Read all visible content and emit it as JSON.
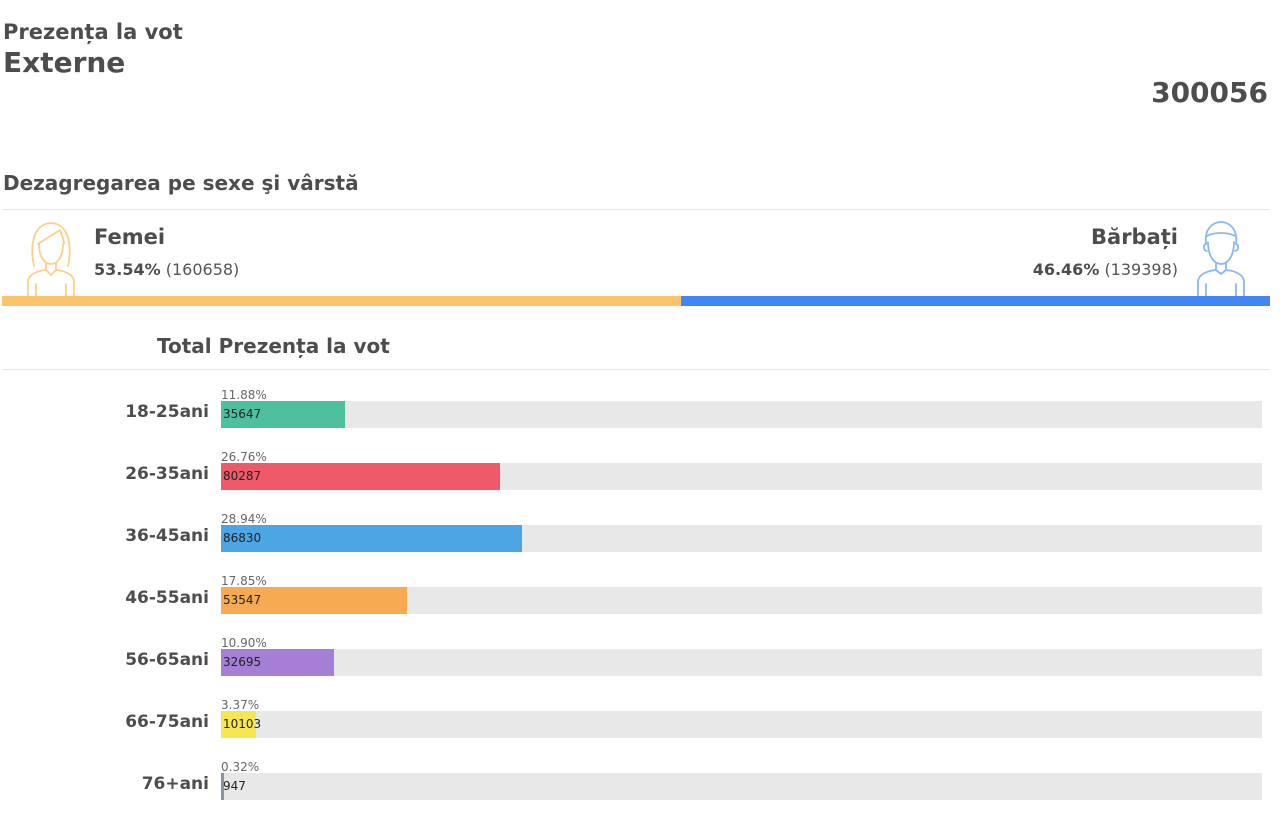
{
  "header": {
    "subtitle": "Prezența la vot",
    "title": "Externe",
    "total": "300056"
  },
  "breakdown": {
    "title": "Dezagregarea pe sexe şi vârstă",
    "female": {
      "label": "Femei",
      "percent": "53.54%",
      "count": "(160658)",
      "share": 53.54,
      "color": "#fbc36c",
      "icon": "female-user-icon"
    },
    "male": {
      "label": "Bărbați",
      "percent": "46.46%",
      "count": "(139398)",
      "share": 46.46,
      "color": "#4285f4",
      "icon": "male-user-icon"
    }
  },
  "age": {
    "title": "Total Prezența la vot",
    "groups": [
      {
        "label": "18-25ani",
        "percent": "11.88%",
        "count": "35647",
        "share": 11.88,
        "color": "#4ec0a0"
      },
      {
        "label": "26-35ani",
        "percent": "26.76%",
        "count": "80287",
        "share": 26.76,
        "color": "#ee5a6a"
      },
      {
        "label": "36-45ani",
        "percent": "28.94%",
        "count": "86830",
        "share": 28.94,
        "color": "#4da6e3"
      },
      {
        "label": "46-55ani",
        "percent": "17.85%",
        "count": "53547",
        "share": 17.85,
        "color": "#f7aa52"
      },
      {
        "label": "56-65ani",
        "percent": "10.90%",
        "count": "32695",
        "share": 10.9,
        "color": "#a57fd6"
      },
      {
        "label": "66-75ani",
        "percent": "3.37%",
        "count": "10103",
        "share": 3.37,
        "color": "#f6e652"
      },
      {
        "label": "76+ani",
        "percent": "0.32%",
        "count": "947",
        "share": 0.32,
        "color": "#8a93a6"
      }
    ]
  }
}
